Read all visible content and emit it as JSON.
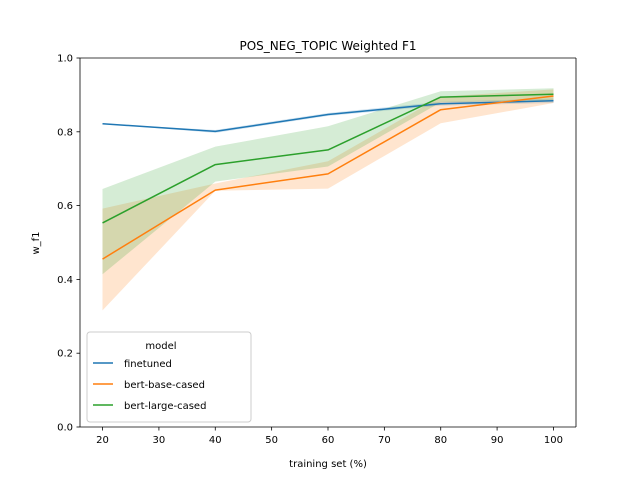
{
  "chart_data": {
    "type": "line",
    "title": "POS_NEG_TOPIC Weighted F1",
    "xlabel": "training set (%)",
    "ylabel": "w_f1",
    "x": [
      20,
      40,
      60,
      80,
      100
    ],
    "xlim": [
      16,
      104
    ],
    "ylim": [
      0.0,
      1.0
    ],
    "xticks": [
      "20",
      "30",
      "40",
      "50",
      "60",
      "70",
      "80",
      "90",
      "100"
    ],
    "yticks": [
      "0.0",
      "0.2",
      "0.4",
      "0.6",
      "0.8",
      "1.0"
    ],
    "grid": false,
    "legend": {
      "title": "model",
      "placement": "lower-left"
    },
    "series": [
      {
        "name": "finetuned",
        "color": "#1f77b4",
        "values": [
          0.822,
          0.801,
          0.847,
          0.876,
          0.884
        ],
        "lower": [
          0.822,
          0.797,
          0.843,
          0.871,
          0.878
        ],
        "upper": [
          0.822,
          0.805,
          0.851,
          0.881,
          0.89
        ]
      },
      {
        "name": "bert-base-cased",
        "color": "#ff7f0e",
        "values": [
          0.455,
          0.642,
          0.686,
          0.86,
          0.897
        ],
        "lower": [
          0.316,
          0.64,
          0.646,
          0.823,
          0.878
        ],
        "upper": [
          0.592,
          0.66,
          0.72,
          0.895,
          0.915
        ]
      },
      {
        "name": "bert-large-cased",
        "color": "#2ca02c",
        "values": [
          0.553,
          0.711,
          0.751,
          0.894,
          0.902
        ],
        "lower": [
          0.414,
          0.665,
          0.706,
          0.88,
          0.886
        ],
        "upper": [
          0.645,
          0.76,
          0.815,
          0.91,
          0.918
        ]
      }
    ]
  }
}
